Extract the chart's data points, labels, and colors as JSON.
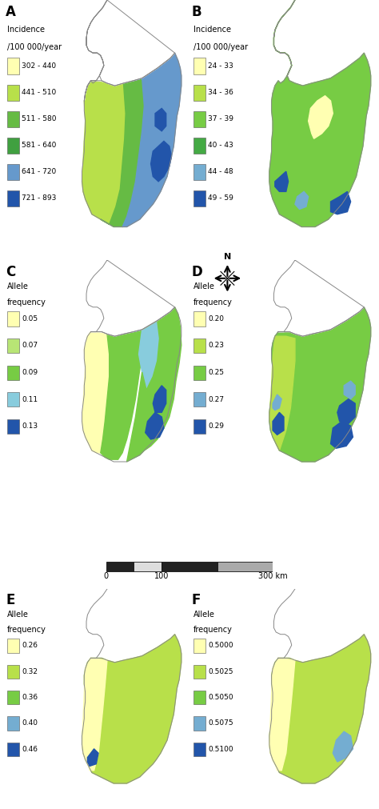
{
  "panels": [
    {
      "label": "A",
      "title_line1": "Incidence",
      "title_line2": "/100 000/year",
      "legend_colors": [
        "#ffffb2",
        "#b8e04a",
        "#66bb44",
        "#40a040",
        "#6699cc",
        "#2255aa"
      ],
      "legend_labels": [
        "302 - 440",
        "441 - 510",
        "511 - 580",
        "581 - 640",
        "641 - 720",
        "721 - 893"
      ],
      "row": 0,
      "col": 0,
      "show_north_filled": false,
      "south_dominant_color": "#99cc55",
      "east_color": "#6699cc",
      "se_color": "#2255aa"
    },
    {
      "label": "B",
      "title_line1": "Incidence",
      "title_line2": "/100 000/year",
      "legend_colors": [
        "#ffffb2",
        "#b8e04a",
        "#77cc44",
        "#44aa44",
        "#74add1",
        "#2255aa"
      ],
      "legend_labels": [
        "24 - 33",
        "34 - 36",
        "37 - 39",
        "40 - 43",
        "44 - 48",
        "49 - 59"
      ],
      "row": 0,
      "col": 1,
      "show_north_filled": true,
      "north_color": "#77cc44",
      "south_dominant_color": "#99dd55",
      "east_color": "#74add1",
      "se_color": "#2255aa"
    },
    {
      "label": "C",
      "title_line1": "Allele",
      "title_line2": "frequency",
      "legend_colors": [
        "#ffffb2",
        "#b8e575",
        "#77cc44",
        "#88ccdd",
        "#2255aa"
      ],
      "legend_labels": [
        "0.05",
        "0.07",
        "0.09",
        "0.11",
        "0.13"
      ],
      "row": 1,
      "col": 0,
      "show_north_filled": false,
      "south_dominant_color": "#99cc55",
      "west_color": "#ffffb2",
      "north_sub_color": "#88ccdd",
      "se_color": "#2255aa"
    },
    {
      "label": "D",
      "title_line1": "Allele",
      "title_line2": "frequency",
      "legend_colors": [
        "#ffffb2",
        "#b8e04a",
        "#77cc44",
        "#74add1",
        "#2255aa"
      ],
      "legend_labels": [
        "0.20",
        "0.23",
        "0.25",
        "0.27",
        "0.29"
      ],
      "row": 1,
      "col": 1,
      "show_north_filled": false,
      "south_dominant_color": "#99cc55",
      "east_color": "#74add1",
      "se_color": "#2255aa"
    },
    {
      "label": "E",
      "title_line1": "Allele",
      "title_line2": "frequency",
      "legend_colors": [
        "#ffffb2",
        "#b8e04a",
        "#77cc44",
        "#74add1",
        "#2255aa"
      ],
      "legend_labels": [
        "0.26",
        "0.32",
        "0.36",
        "0.40",
        "0.46"
      ],
      "row": 2,
      "col": 0,
      "show_north_filled": false,
      "west_color": "#ffffb2",
      "south_dominant_color": "#b8e04a",
      "se_color": "#2255aa"
    },
    {
      "label": "F",
      "title_line1": "Allele",
      "title_line2": "frequency",
      "legend_colors": [
        "#ffffb2",
        "#b8e04a",
        "#77cc44",
        "#74add1",
        "#2255aa"
      ],
      "legend_labels": [
        "0.5000",
        "0.5025",
        "0.5050",
        "0.5075",
        "0.5100"
      ],
      "row": 2,
      "col": 1,
      "show_north_filled": false,
      "west_color": "#ffffb2",
      "south_dominant_color": "#b8e04a",
      "se_color": "#2255aa"
    }
  ],
  "bg_color": "#ffffff",
  "outline_color": "#999999"
}
